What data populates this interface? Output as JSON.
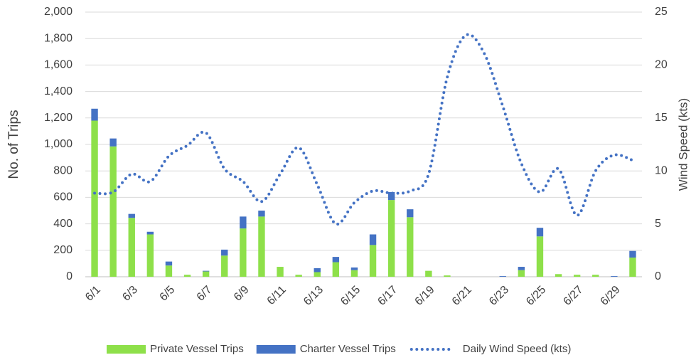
{
  "chart_data": {
    "type": "bar",
    "stacked": true,
    "categories": [
      "6/1",
      null,
      "6/3",
      null,
      "6/5",
      null,
      "6/7",
      null,
      "6/9",
      null,
      "6/11",
      null,
      "6/13",
      null,
      "6/15",
      null,
      "6/17",
      null,
      "6/19",
      null,
      "6/21",
      null,
      "6/23",
      null,
      "6/25",
      null,
      "6/27",
      null,
      "6/29",
      null
    ],
    "series": [
      {
        "name": "Private Vessel Trips",
        "color": "#8ee04a",
        "type": "bar",
        "values": [
          1180,
          985,
          445,
          320,
          85,
          15,
          40,
          160,
          365,
          455,
          75,
          15,
          35,
          110,
          50,
          240,
          580,
          450,
          45,
          10,
          0,
          0,
          0,
          50,
          305,
          20,
          15,
          15,
          0,
          145
        ]
      },
      {
        "name": "Charter Vessel Trips",
        "color": "#4472c4",
        "type": "bar",
        "values": [
          90,
          60,
          30,
          20,
          30,
          0,
          5,
          45,
          90,
          45,
          0,
          0,
          30,
          40,
          20,
          80,
          60,
          60,
          0,
          0,
          0,
          0,
          5,
          25,
          65,
          0,
          0,
          0,
          5,
          50
        ]
      },
      {
        "name": "Daily Wind Speed (kts)",
        "color": "#4472c4",
        "type": "line",
        "axis": "y2",
        "values": [
          7.9,
          8.0,
          9.7,
          9.0,
          11.4,
          12.4,
          13.6,
          10.2,
          9.0,
          7.1,
          9.7,
          12.2,
          8.7,
          5.0,
          7.0,
          8.1,
          7.9,
          8.1,
          9.7,
          18.8,
          22.8,
          21.1,
          16.1,
          10.7,
          8.0,
          10.2,
          5.8,
          10.0,
          11.5,
          11.0
        ]
      }
    ],
    "y_label": "No. of Trips",
    "y2_label": "Wind Speed (kts)",
    "ylim": [
      0,
      2000
    ],
    "yticks": [
      0,
      200,
      400,
      600,
      800,
      {
        "value": 1000,
        "label": "1,000"
      },
      {
        "value": 1200,
        "label": "1,200"
      },
      {
        "value": 1400,
        "label": "1,400"
      },
      {
        "value": 1600,
        "label": "1,600"
      },
      {
        "value": 1800,
        "label": "1,800"
      },
      {
        "value": 2000,
        "label": "2,000"
      }
    ],
    "y2lim": [
      0,
      25
    ],
    "y2ticks": [
      0,
      5,
      10,
      15,
      20,
      25
    ],
    "grid": true,
    "legend": "bottom"
  }
}
